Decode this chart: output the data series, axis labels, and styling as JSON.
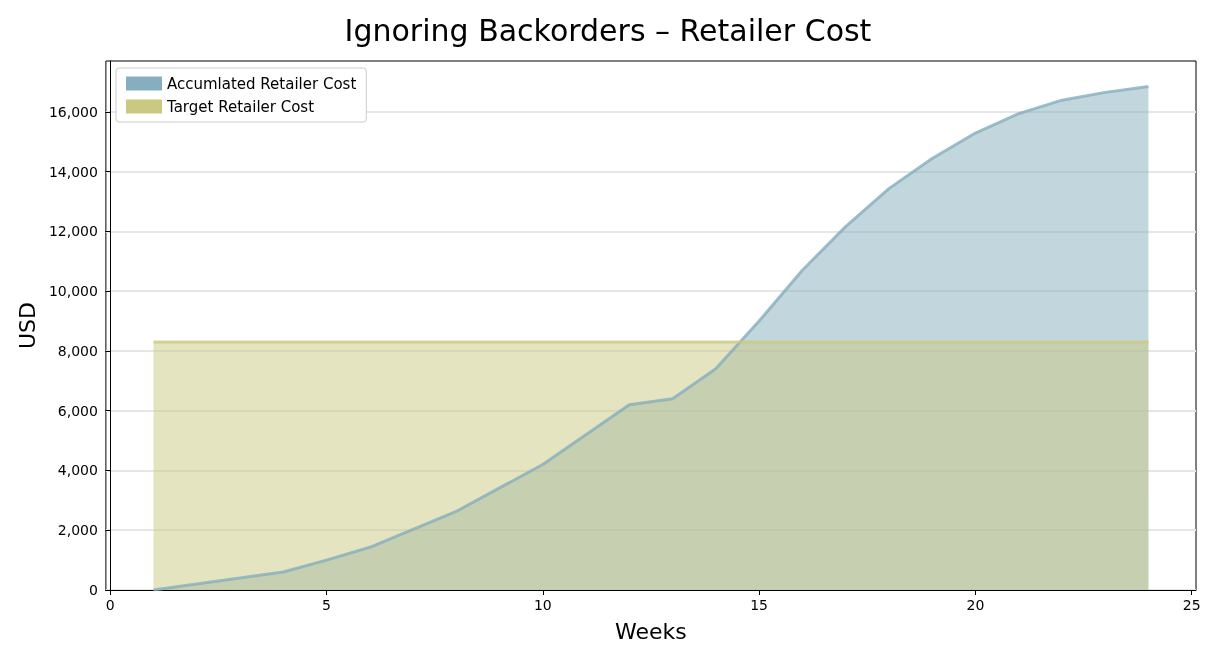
{
  "chart_data": {
    "type": "area",
    "title": "Ignoring Backorders – Retailer Cost",
    "xlabel": "Weeks",
    "ylabel": "USD",
    "xlim": [
      -0.1,
      25.1
    ],
    "xticks": [
      0,
      5,
      10,
      15,
      20,
      25
    ],
    "ylim": [
      0,
      17700
    ],
    "yticks": [
      {
        "value": 0,
        "label": "0"
      },
      {
        "value": 2000,
        "label": "2,000"
      },
      {
        "value": 4000,
        "label": "4,000"
      },
      {
        "value": 6000,
        "label": "6,000"
      },
      {
        "value": 8000,
        "label": "8,000"
      },
      {
        "value": 10000,
        "label": "10,000"
      },
      {
        "value": 12000,
        "label": "12,000"
      },
      {
        "value": 14000,
        "label": "14,000"
      },
      {
        "value": 16000,
        "label": "16,000"
      }
    ],
    "grid": "y",
    "legend": "top left",
    "series": [
      {
        "name": "Accumlated Retailer Cost",
        "color": "#86aebd",
        "x": [
          1,
          4,
          5,
          6,
          8,
          10,
          12,
          13,
          14,
          15,
          16,
          17,
          18,
          19,
          20,
          21,
          22,
          23,
          24
        ],
        "values": [
          0,
          600,
          1000,
          1430,
          2630,
          4200,
          6200,
          6400,
          7400,
          9000,
          10700,
          12160,
          13430,
          14440,
          15290,
          15940,
          16390,
          16650,
          16850
        ]
      },
      {
        "name": "Target Retailer Cost",
        "color": "#c9c981",
        "x": [
          1,
          24
        ],
        "values": [
          8300,
          8300
        ]
      }
    ]
  }
}
